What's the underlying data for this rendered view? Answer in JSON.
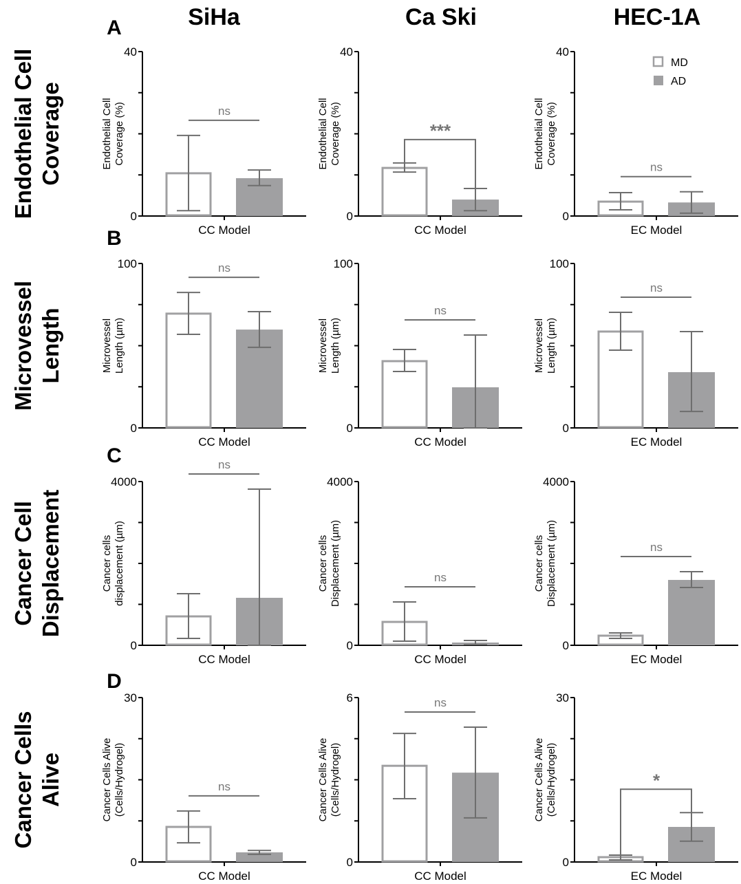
{
  "colors": {
    "md_stroke": "#a0a0a2",
    "ad_fill": "#a0a0a2",
    "error": "#6e6e6e",
    "axis": "#000000",
    "annotation": "#777777"
  },
  "legend": {
    "placement": "top-right",
    "entries": [
      {
        "name": "MD",
        "style": "open"
      },
      {
        "name": "AD",
        "style": "filled"
      }
    ]
  },
  "columns": [
    "SiHa",
    "Ca Ski",
    "HEC-1A"
  ],
  "rows": [
    {
      "panel": "A",
      "label": "Endothelial Cell Coverage"
    },
    {
      "panel": "B",
      "label": "Microvessel Length"
    },
    {
      "panel": "C",
      "label": "Cancer Cell Displacement"
    },
    {
      "panel": "D",
      "label": "Cancer Cells Alive"
    }
  ],
  "chart_data": [
    {
      "type": "bar",
      "row": 0,
      "col": 0,
      "xlabel": "CC Model",
      "ylabel": [
        "Endothelial Cell",
        "Coverage (%)"
      ],
      "ylim": [
        0,
        40
      ],
      "ticks": [
        "0",
        "40"
      ],
      "series": [
        {
          "name": "MD",
          "value": 10.4,
          "err": [
            1.3,
            19.6
          ]
        },
        {
          "name": "AD",
          "value": 9.2,
          "err": [
            7.4,
            11.2
          ]
        }
      ],
      "significance": "ns"
    },
    {
      "type": "bar",
      "row": 0,
      "col": 1,
      "xlabel": "CC Model",
      "ylabel": [
        "Endothelial Cell",
        "Coverage (%)"
      ],
      "ylim": [
        0,
        40
      ],
      "ticks": [
        "0",
        "40"
      ],
      "series": [
        {
          "name": "MD",
          "value": 11.7,
          "err": [
            10.7,
            12.9
          ]
        },
        {
          "name": "AD",
          "value": 4.0,
          "err": [
            1.3,
            6.7
          ]
        }
      ],
      "significance": "***"
    },
    {
      "type": "bar",
      "row": 0,
      "col": 2,
      "xlabel": "EC Model",
      "ylabel": [
        "Endothelial Cell",
        "Coverage (%)"
      ],
      "ylim": [
        0,
        40
      ],
      "ticks": [
        "0",
        "40"
      ],
      "series": [
        {
          "name": "MD",
          "value": 3.5,
          "err": [
            1.5,
            5.7
          ]
        },
        {
          "name": "AD",
          "value": 3.3,
          "err": [
            0.7,
            5.9
          ]
        }
      ],
      "significance": "ns"
    },
    {
      "type": "bar",
      "row": 1,
      "col": 0,
      "xlabel": "CC Model",
      "ylabel": [
        "Microvessel",
        "Length (µm)"
      ],
      "ylim": [
        0,
        100
      ],
      "ticks": [
        "0",
        "100"
      ],
      "series": [
        {
          "name": "MD",
          "value": 69.5,
          "err": [
            56.9,
            82.4
          ]
        },
        {
          "name": "AD",
          "value": 59.8,
          "err": [
            49.0,
            70.7
          ]
        }
      ],
      "significance": "ns"
    },
    {
      "type": "bar",
      "row": 1,
      "col": 1,
      "xlabel": "CC Model",
      "ylabel": [
        "Microvessel",
        "Length (µm)"
      ],
      "ylim": [
        0,
        100
      ],
      "ticks": [
        "0",
        "100"
      ],
      "series": [
        {
          "name": "MD",
          "value": 40.6,
          "err": [
            34.3,
            47.7
          ]
        },
        {
          "name": "AD",
          "value": 24.7,
          "err": [
            0,
            56.5
          ]
        }
      ],
      "significance": "ns"
    },
    {
      "type": "bar",
      "row": 1,
      "col": 2,
      "xlabel": "EC Model",
      "ylabel": [
        "Microvessel",
        "Length (µm)"
      ],
      "ylim": [
        0,
        100
      ],
      "ticks": [
        "0",
        "100"
      ],
      "series": [
        {
          "name": "MD",
          "value": 58.6,
          "err": [
            47.3,
            70.3
          ]
        },
        {
          "name": "AD",
          "value": 33.9,
          "err": [
            10.0,
            58.6
          ]
        }
      ],
      "significance": "ns"
    },
    {
      "type": "bar",
      "row": 2,
      "col": 0,
      "xlabel": "CC Model",
      "ylabel": [
        "Cancer cells",
        "displacement (µm)"
      ],
      "ylim": [
        0,
        4000
      ],
      "ticks": [
        "0",
        "4000"
      ],
      "series": [
        {
          "name": "MD",
          "value": 706,
          "err": [
            168,
            1261
          ]
        },
        {
          "name": "AD",
          "value": 1160,
          "err": [
            0,
            3815
          ]
        }
      ],
      "significance": "ns"
    },
    {
      "type": "bar",
      "row": 2,
      "col": 1,
      "xlabel": "CC Model",
      "ylabel": [
        "Cancer cells",
        "Displacement (µm)"
      ],
      "ylim": [
        0,
        4000
      ],
      "ticks": [
        "0",
        "4000"
      ],
      "series": [
        {
          "name": "MD",
          "value": 571,
          "err": [
            101,
            1059
          ]
        },
        {
          "name": "AD",
          "value": 67,
          "err": [
            17,
            118
          ]
        }
      ],
      "significance": "ns"
    },
    {
      "type": "bar",
      "row": 2,
      "col": 2,
      "xlabel": "EC Model",
      "ylabel": [
        "Cancer cells",
        "Displacement (µm)"
      ],
      "ylim": [
        0,
        4000
      ],
      "ticks": [
        "0",
        "4000"
      ],
      "series": [
        {
          "name": "MD",
          "value": 235,
          "err": [
            168,
            303
          ]
        },
        {
          "name": "AD",
          "value": 1597,
          "err": [
            1412,
            1798
          ]
        }
      ],
      "significance": "ns"
    },
    {
      "type": "bar",
      "row": 3,
      "col": 0,
      "xlabel": "CC Model",
      "ylabel": [
        "Cancer Cells Alive",
        "(Cells/Hydrogel)"
      ],
      "ylim": [
        0,
        30
      ],
      "ticks": [
        "0",
        "30"
      ],
      "series": [
        {
          "name": "MD",
          "value": 6.4,
          "err": [
            3.5,
            9.3
          ]
        },
        {
          "name": "AD",
          "value": 1.76,
          "err": [
            1.4,
            2.1
          ]
        }
      ],
      "significance": "ns"
    },
    {
      "type": "bar",
      "row": 3,
      "col": 1,
      "xlabel": "CC Model",
      "ylabel": [
        "Cancer Cells Alive",
        "(Cells/Hydrogel)"
      ],
      "ylim": [
        0,
        6
      ],
      "ticks": [
        "0",
        "6"
      ],
      "series": [
        {
          "name": "MD",
          "value": 3.51,
          "err": [
            2.31,
            4.69
          ]
        },
        {
          "name": "AD",
          "value": 3.26,
          "err": [
            1.61,
            4.92
          ]
        }
      ],
      "significance": "ns"
    },
    {
      "type": "bar",
      "row": 3,
      "col": 2,
      "xlabel": "EC Model",
      "ylabel": [
        "Cancer Cells Alive",
        "(Cells/Hydrogel)"
      ],
      "ylim": [
        0,
        30
      ],
      "ticks": [
        "0",
        "30"
      ],
      "series": [
        {
          "name": "MD",
          "value": 0.88,
          "err": [
            0.38,
            1.26
          ]
        },
        {
          "name": "AD",
          "value": 6.4,
          "err": [
            3.8,
            9.0
          ]
        }
      ],
      "significance": "*"
    }
  ]
}
